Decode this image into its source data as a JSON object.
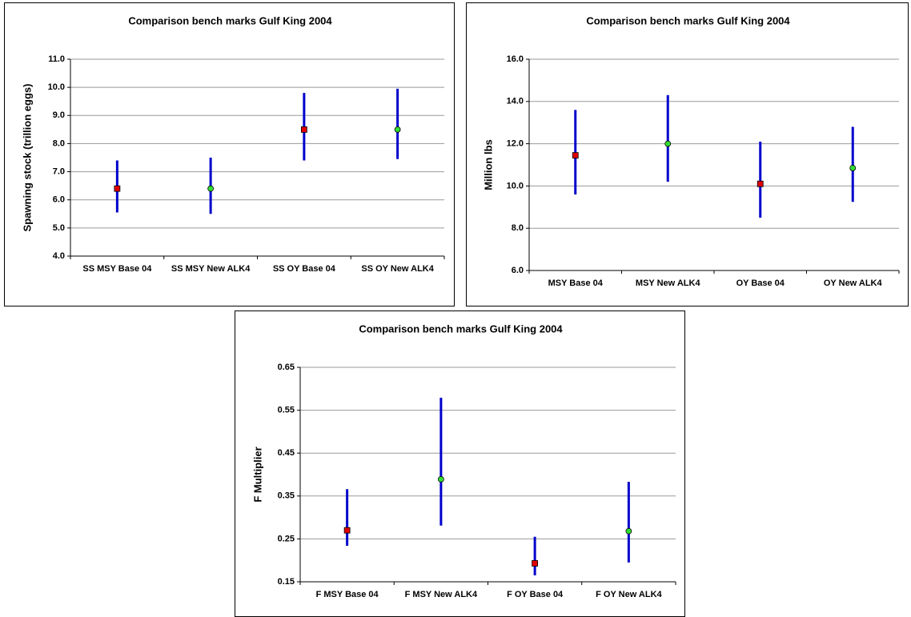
{
  "chart_data": [
    {
      "type": "errorbar",
      "title": "Comparison bench marks Gulf King 2004",
      "ylabel": "Spawning stock (trillion eggs)",
      "categories": [
        "SS MSY Base 04",
        "SS MSY New ALK4",
        "SS OY Base 04",
        "SS OY New ALK4"
      ],
      "values": [
        6.4,
        6.4,
        8.5,
        8.5
      ],
      "lower": [
        5.55,
        5.5,
        7.4,
        7.45
      ],
      "upper": [
        7.4,
        7.5,
        9.8,
        9.95
      ],
      "markers": [
        "square",
        "circle",
        "square",
        "circle"
      ],
      "marker_colors": [
        "#e00000",
        "#33dd33",
        "#e00000",
        "#33dd33"
      ],
      "bar_color": "#0000cc",
      "ylim": [
        4,
        11
      ],
      "yticks": [
        {
          "value": 4,
          "label": "4.0"
        },
        {
          "value": 5,
          "label": "5.0"
        },
        {
          "value": 6,
          "label": "6.0"
        },
        {
          "value": 7,
          "label": "7.0"
        },
        {
          "value": 8,
          "label": "8.0"
        },
        {
          "value": 9,
          "label": "9.0"
        },
        {
          "value": 10,
          "label": "10.0"
        },
        {
          "value": 11,
          "label": "11.0"
        }
      ],
      "grid": true
    },
    {
      "type": "errorbar",
      "title": "Comparison bench marks Gulf King 2004",
      "ylabel": "Million lbs",
      "categories": [
        "MSY Base 04",
        "MSY New ALK4",
        "OY Base 04",
        "OY New ALK4"
      ],
      "values": [
        11.45,
        12.0,
        10.1,
        10.85
      ],
      "lower": [
        9.6,
        10.2,
        8.5,
        9.25
      ],
      "upper": [
        13.6,
        14.3,
        12.1,
        12.8
      ],
      "markers": [
        "square",
        "circle",
        "square",
        "circle"
      ],
      "marker_colors": [
        "#e00000",
        "#33dd33",
        "#e00000",
        "#33dd33"
      ],
      "bar_color": "#0000cc",
      "ylim": [
        6,
        16
      ],
      "yticks": [
        {
          "value": 6,
          "label": "6.0"
        },
        {
          "value": 8,
          "label": "8.0"
        },
        {
          "value": 10,
          "label": "10.0"
        },
        {
          "value": 12,
          "label": "12.0"
        },
        {
          "value": 14,
          "label": "14.0"
        },
        {
          "value": 16,
          "label": "16.0"
        }
      ],
      "grid": true
    },
    {
      "type": "errorbar",
      "title": "Comparison bench marks Gulf King 2004",
      "ylabel": "F Multiplier",
      "categories": [
        "F MSY Base 04",
        "F MSY New ALK4",
        "F OY Base 04",
        "F OY New ALK4"
      ],
      "values": [
        0.27,
        0.389,
        0.193,
        0.268
      ],
      "lower": [
        0.234,
        0.281,
        0.165,
        0.195
      ],
      "upper": [
        0.366,
        0.579,
        0.255,
        0.383
      ],
      "markers": [
        "square",
        "circle",
        "square",
        "circle"
      ],
      "marker_colors": [
        "#e00000",
        "#33dd33",
        "#e00000",
        "#33dd33"
      ],
      "bar_color": "#0000cc",
      "ylim": [
        0.15,
        0.65
      ],
      "yticks": [
        0.15,
        0.25,
        0.35,
        0.45,
        0.55,
        0.65
      ],
      "grid": true
    }
  ]
}
